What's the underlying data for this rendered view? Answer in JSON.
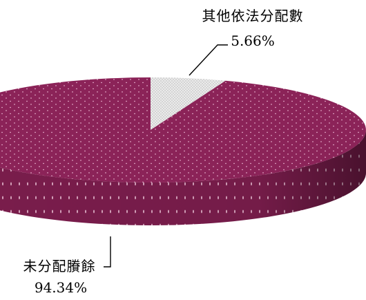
{
  "chart_data": {
    "type": "pie",
    "style": "3d",
    "title": "",
    "slices": [
      {
        "label": "未分配賸餘",
        "value": 94.34,
        "value_label": "94.34%",
        "color": "#8b2358"
      },
      {
        "label": "其他依法分配數",
        "value": 5.66,
        "value_label": "5.66%",
        "color": "#d9d9d9"
      }
    ],
    "legend": "none"
  }
}
